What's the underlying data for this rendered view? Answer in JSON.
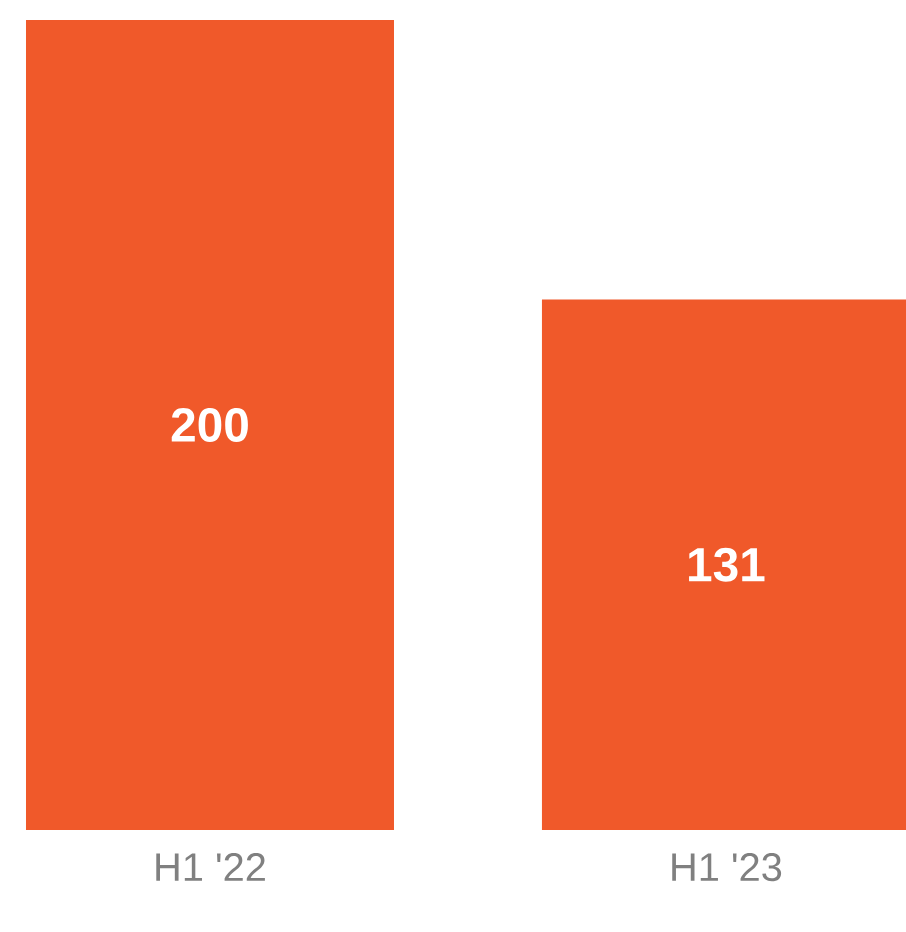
{
  "chart_data": {
    "type": "bar",
    "categories": [
      "H1 '22",
      "H1 '23"
    ],
    "values": [
      200,
      131
    ],
    "color": "#f0592a",
    "ylim": [
      0,
      200
    ],
    "data_labels": true
  }
}
